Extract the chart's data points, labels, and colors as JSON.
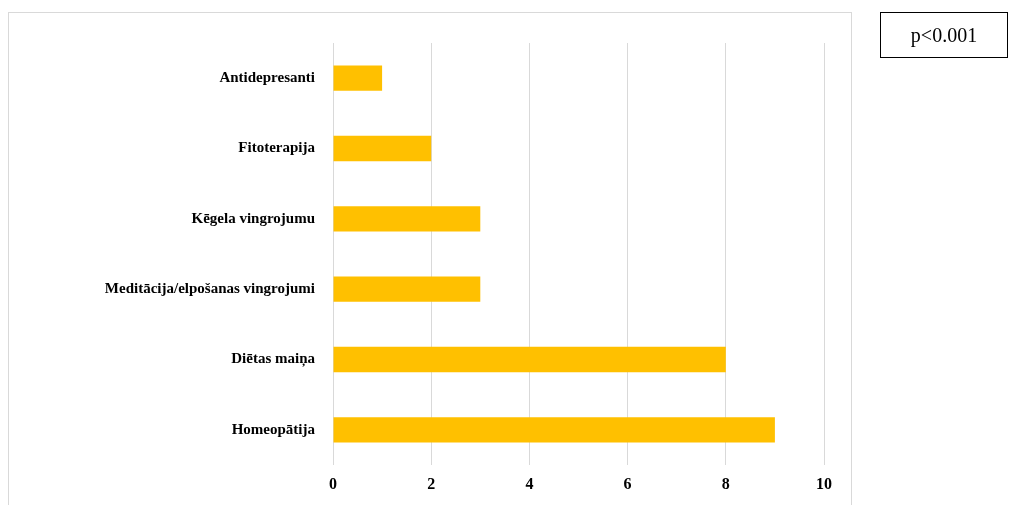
{
  "chart_data": {
    "type": "bar",
    "orientation": "horizontal",
    "categories": [
      "Antidepresanti",
      "Fitoterapija",
      "Kēgela vingrojumu",
      "Meditācija/elpošanas vingrojumi",
      "Diētas maiņa",
      "Homeopātija"
    ],
    "values": [
      1,
      2,
      3,
      3,
      8,
      9
    ],
    "color": "#ffc000",
    "xlim": [
      0,
      10
    ],
    "xticks": [
      0,
      2,
      4,
      6,
      8,
      10
    ],
    "grid": "x",
    "legend": false,
    "annotations": [
      "p<0.001"
    ]
  }
}
